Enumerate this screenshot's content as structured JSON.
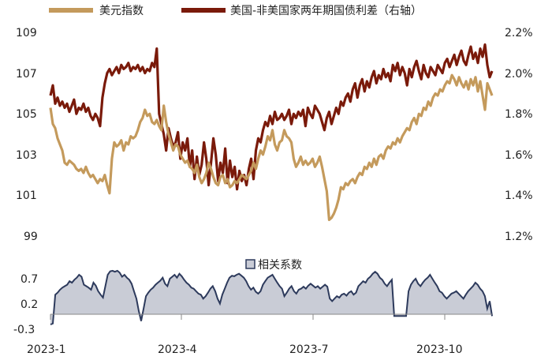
{
  "chart_data": [
    {
      "type": "line",
      "legend": {
        "placement": "top"
      },
      "x_tick_labels": [
        "2023-1",
        "2023-4",
        "2023-7",
        "2023-10"
      ],
      "x_tick_indices": [
        0,
        59,
        118,
        176
      ],
      "left_axis": {
        "ylim": [
          99,
          109
        ],
        "ticks": [
          "99",
          "101",
          "103",
          "105",
          "107",
          "109"
        ]
      },
      "right_axis": {
        "ylim": [
          1.2,
          2.2
        ],
        "ticks": [
          "1.2%",
          "1.4%",
          "1.6%",
          "1.8%",
          "2.0%",
          "2.2%"
        ]
      },
      "series": [
        {
          "name": "美元指数",
          "axis": "left",
          "color": "#c49a5c",
          "values": [
            105.3,
            104.5,
            104.3,
            103.8,
            103.5,
            103.2,
            102.6,
            102.5,
            102.7,
            102.6,
            102.5,
            102.3,
            102.2,
            102.3,
            102.1,
            102.4,
            102.1,
            101.9,
            102.0,
            101.8,
            101.6,
            101.8,
            101.7,
            102.0,
            101.5,
            101.1,
            102.8,
            103.6,
            103.4,
            103.5,
            103.7,
            103.2,
            103.6,
            103.5,
            103.9,
            103.8,
            103.9,
            104.2,
            104.6,
            104.8,
            105.2,
            104.9,
            105.0,
            104.6,
            104.5,
            104.7,
            104.4,
            104.2,
            105.4,
            104.6,
            104.0,
            103.6,
            103.2,
            103.5,
            103.4,
            103.0,
            102.8,
            102.6,
            102.7,
            102.4,
            102.3,
            102.1,
            102.5,
            101.9,
            101.6,
            101.8,
            102.1,
            102.6,
            102.3,
            101.9,
            101.6,
            101.5,
            101.9,
            102.0,
            101.6,
            101.8,
            101.4,
            101.5,
            101.7,
            101.6,
            101.8,
            102.0,
            101.9,
            101.8,
            102.0,
            102.2,
            102.6,
            102.3,
            102.8,
            103.2,
            103.0,
            103.4,
            103.9,
            103.7,
            104.2,
            103.5,
            103.2,
            103.6,
            103.7,
            104.2,
            103.9,
            103.8,
            103.6,
            102.8,
            102.4,
            102.6,
            102.9,
            102.5,
            102.7,
            102.5,
            102.6,
            102.8,
            102.4,
            102.6,
            102.9,
            102.4,
            101.8,
            101.2,
            99.8,
            99.9,
            100.1,
            100.4,
            100.8,
            101.4,
            101.3,
            101.6,
            101.5,
            101.7,
            101.8,
            101.6,
            101.9,
            102.1,
            102.0,
            102.4,
            102.3,
            102.6,
            102.4,
            102.8,
            102.5,
            102.9,
            103.0,
            102.8,
            103.2,
            103.4,
            103.3,
            103.6,
            103.5,
            103.8,
            103.6,
            103.9,
            104.1,
            104.3,
            104.2,
            104.6,
            104.8,
            104.5,
            105.0,
            104.9,
            105.3,
            105.2,
            105.6,
            105.4,
            105.8,
            106.0,
            105.9,
            106.2,
            106.1,
            106.4,
            106.6,
            106.5,
            106.9,
            106.7,
            106.4,
            106.8,
            106.5,
            106.3,
            106.6,
            106.2,
            106.7,
            106.4,
            106.8,
            106.1,
            106.6,
            105.9,
            105.2,
            106.5,
            106.2,
            105.9
          ]
        },
        {
          "name": "美国-非美国家两年期国债利差（右轴）",
          "axis": "right",
          "color": "#7a1a0a",
          "values": [
            1.89,
            1.94,
            1.85,
            1.88,
            1.84,
            1.86,
            1.83,
            1.85,
            1.81,
            1.84,
            1.87,
            1.8,
            1.83,
            1.82,
            1.85,
            1.81,
            1.83,
            1.79,
            1.77,
            1.8,
            1.78,
            1.74,
            1.88,
            1.95,
            2.0,
            2.02,
            1.99,
            2.01,
            2.03,
            2.0,
            2.04,
            2.02,
            2.03,
            2.05,
            2.01,
            2.03,
            2.02,
            2.04,
            2.01,
            2.03,
            2.0,
            2.02,
            2.01,
            2.05,
            2.03,
            2.12,
            1.8,
            1.75,
            1.7,
            1.62,
            1.73,
            1.68,
            1.64,
            1.66,
            1.71,
            1.58,
            1.66,
            1.62,
            1.68,
            1.54,
            1.62,
            1.48,
            1.59,
            1.5,
            1.55,
            1.66,
            1.58,
            1.45,
            1.56,
            1.68,
            1.6,
            1.47,
            1.56,
            1.51,
            1.63,
            1.46,
            1.57,
            1.49,
            1.54,
            1.43,
            1.52,
            1.47,
            1.5,
            1.45,
            1.53,
            1.58,
            1.48,
            1.62,
            1.68,
            1.66,
            1.72,
            1.76,
            1.74,
            1.79,
            1.75,
            1.81,
            1.77,
            1.78,
            1.8,
            1.77,
            1.79,
            1.82,
            1.75,
            1.8,
            1.78,
            1.81,
            1.79,
            1.82,
            1.74,
            1.83,
            1.8,
            1.78,
            1.84,
            1.82,
            1.8,
            1.76,
            1.72,
            1.78,
            1.81,
            1.75,
            1.79,
            1.83,
            1.8,
            1.86,
            1.84,
            1.88,
            1.9,
            1.86,
            1.92,
            1.95,
            1.88,
            1.94,
            1.97,
            1.91,
            1.96,
            1.93,
            1.98,
            2.01,
            1.95,
            1.99,
            1.97,
            2.02,
            1.98,
            2.0,
            1.96,
            2.04,
            2.01,
            2.05,
            1.99,
            2.03,
            2.0,
            1.94,
            2.02,
            1.98,
            2.03,
            2.06,
            2.01,
            1.97,
            2.04,
            2.0,
            1.98,
            2.03,
            2.01,
            1.99,
            2.04,
            2.02,
            2.0,
            2.05,
            2.07,
            2.03,
            2.06,
            2.09,
            2.04,
            2.08,
            2.11,
            2.06,
            2.04,
            2.09,
            2.13,
            2.07,
            2.1,
            2.05,
            2.12,
            2.08,
            2.14,
            2.04,
            1.98,
            2.01
          ]
        }
      ]
    },
    {
      "type": "area",
      "legend": {
        "placement": "top-center"
      },
      "ylim": [
        -0.3,
        1.0
      ],
      "y_ticks": [
        "0.7",
        "0.2",
        "-0.3"
      ],
      "x_tick_labels": [
        "2023-1",
        "2023-4",
        "2023-7",
        "2023-10"
      ],
      "series": [
        {
          "name": "相关系数",
          "color": "#c9ccd6",
          "line_color": "#2d3a5c",
          "values": [
            -0.22,
            -0.2,
            0.38,
            0.42,
            0.48,
            0.52,
            0.55,
            0.58,
            0.65,
            0.62,
            0.68,
            0.72,
            0.78,
            0.74,
            0.58,
            0.55,
            0.52,
            0.48,
            0.62,
            0.56,
            0.45,
            0.38,
            0.32,
            0.55,
            0.78,
            0.85,
            0.86,
            0.84,
            0.86,
            0.82,
            0.74,
            0.78,
            0.72,
            0.68,
            0.6,
            0.45,
            0.3,
            0.05,
            -0.15,
            0.1,
            0.35,
            0.42,
            0.48,
            0.52,
            0.58,
            0.62,
            0.66,
            0.72,
            0.6,
            0.55,
            0.7,
            0.74,
            0.78,
            0.72,
            0.8,
            0.75,
            0.68,
            0.62,
            0.58,
            0.52,
            0.5,
            0.45,
            0.4,
            0.38,
            0.3,
            0.35,
            0.42,
            0.5,
            0.55,
            0.45,
            0.3,
            0.2,
            0.38,
            0.5,
            0.62,
            0.72,
            0.76,
            0.75,
            0.78,
            0.8,
            0.76,
            0.72,
            0.65,
            0.55,
            0.48,
            0.52,
            0.44,
            0.4,
            0.45,
            0.58,
            0.65,
            0.72,
            0.75,
            0.78,
            0.7,
            0.62,
            0.55,
            0.5,
            0.35,
            0.42,
            0.5,
            0.55,
            0.45,
            0.4,
            0.48,
            0.5,
            0.54,
            0.5,
            0.56,
            0.6,
            0.56,
            0.52,
            0.55,
            0.5,
            0.54,
            0.58,
            0.54,
            0.3,
            0.25,
            0.3,
            0.35,
            0.32,
            0.38,
            0.4,
            0.36,
            0.42,
            0.45,
            0.38,
            0.42,
            0.55,
            0.6,
            0.65,
            0.62,
            0.7,
            0.74,
            0.8,
            0.84,
            0.8,
            0.72,
            0.68,
            0.6,
            0.55,
            0.62,
            0.68,
            -0.05,
            -0.05,
            -0.05,
            -0.05,
            -0.05,
            -0.05,
            0.45,
            0.58,
            0.65,
            0.7,
            0.6,
            0.55,
            0.62,
            0.68,
            0.72,
            0.78,
            0.7,
            0.62,
            0.55,
            0.45,
            0.42,
            0.35,
            0.3,
            0.35,
            0.4,
            0.42,
            0.45,
            0.4,
            0.35,
            0.3,
            0.38,
            0.45,
            0.5,
            0.55,
            0.62,
            0.58,
            0.5,
            0.45,
            0.35,
            0.1,
            0.25,
            -0.05
          ]
        }
      ]
    }
  ]
}
